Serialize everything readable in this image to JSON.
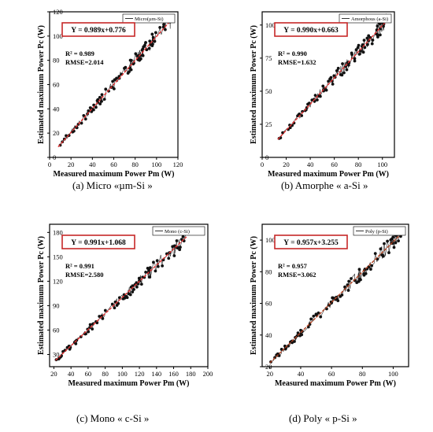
{
  "chart_data": [
    {
      "type": "scatter",
      "panel_label": "(a) Micro «µm-Si »",
      "legend": "Micro(µm-Si)",
      "legend_position": "top-right",
      "equation": "Y = 0.989x+0.776",
      "r2_text": "R² = 0.989",
      "rmse_text": "RMSE=2.014",
      "xlabel": "Measured maximum Power Pm (W)",
      "ylabel": "Estimated maximum Power Pc (W)",
      "xlim": [
        0,
        120
      ],
      "ylim": [
        0,
        120
      ],
      "xticks": [
        0,
        20,
        40,
        60,
        80,
        100,
        120
      ],
      "yticks": [
        0,
        20,
        40,
        60,
        80,
        100,
        120
      ],
      "fit": {
        "slope": 0.989,
        "intercept": 0.776,
        "x_range": [
          8,
          112
        ]
      },
      "scatter_x_range": [
        8,
        115
      ],
      "color": "#000000",
      "fit_color": "#e03030"
    },
    {
      "type": "scatter",
      "panel_label": "(b) Amorphe « a-Si »",
      "legend": "Amorphous (a-Si)",
      "legend_position": "top-right",
      "equation": "Y = 0.990x+0.663",
      "r2_text": "R² = 0.990",
      "rmse_text": "RMSE=1.632",
      "xlabel": "Measured maximum Power Pm (W)",
      "ylabel": "Estimated maximum Power Pc (W)",
      "xlim": [
        0,
        110
      ],
      "ylim": [
        0,
        110
      ],
      "xticks": [
        0,
        20,
        40,
        60,
        80,
        100
      ],
      "yticks": [
        0,
        25,
        50,
        75,
        100
      ],
      "fit": {
        "slope": 0.99,
        "intercept": 0.663,
        "x_range": [
          13,
          103
        ]
      },
      "scatter_x_range": [
        13,
        104
      ],
      "color": "#000000",
      "fit_color": "#e03030"
    },
    {
      "type": "scatter",
      "panel_label": "(c) Mono « c-Si »",
      "legend": "Mono (c-Si)",
      "legend_position": "top-right",
      "equation": "Y = 0.991x+1.068",
      "r2_text": "R² = 0.991",
      "rmse_text": "RMSE=2.580",
      "xlabel": "Measured maximum Power Pm (W)",
      "ylabel": "Estimated maximum Power Pc (W)",
      "xlim": [
        15,
        200
      ],
      "ylim": [
        15,
        190
      ],
      "xticks": [
        20,
        40,
        60,
        80,
        100,
        120,
        140,
        160,
        180,
        200
      ],
      "yticks": [
        30,
        60,
        90,
        120,
        150,
        180
      ],
      "fit": {
        "slope": 0.991,
        "intercept": 1.068,
        "x_range": [
          22,
          175
        ]
      },
      "scatter_x_range": [
        22,
        175
      ],
      "color": "#000000",
      "fit_color": "#e03030"
    },
    {
      "type": "scatter",
      "panel_label": "(d) Poly « p-Si »",
      "legend": "Poly (p-Si)",
      "legend_position": "top-right",
      "equation": "Y = 0.957x+3.255",
      "r2_text": "R² = 0.957",
      "rmse_text": "RMSE=3.062",
      "xlabel": "Measured maximum Power Pm (W)",
      "ylabel": "Estimated maximum Power Pc (W)",
      "xlim": [
        15,
        110
      ],
      "ylim": [
        20,
        110
      ],
      "xticks": [
        20,
        40,
        60,
        80,
        100
      ],
      "yticks": [
        20,
        40,
        60,
        80,
        100
      ],
      "fit": {
        "slope": 0.957,
        "intercept": 3.255,
        "x_range": [
          20,
          106
        ]
      },
      "scatter_x_range": [
        20,
        106
      ],
      "color": "#000000",
      "fit_color": "#b04020"
    }
  ]
}
